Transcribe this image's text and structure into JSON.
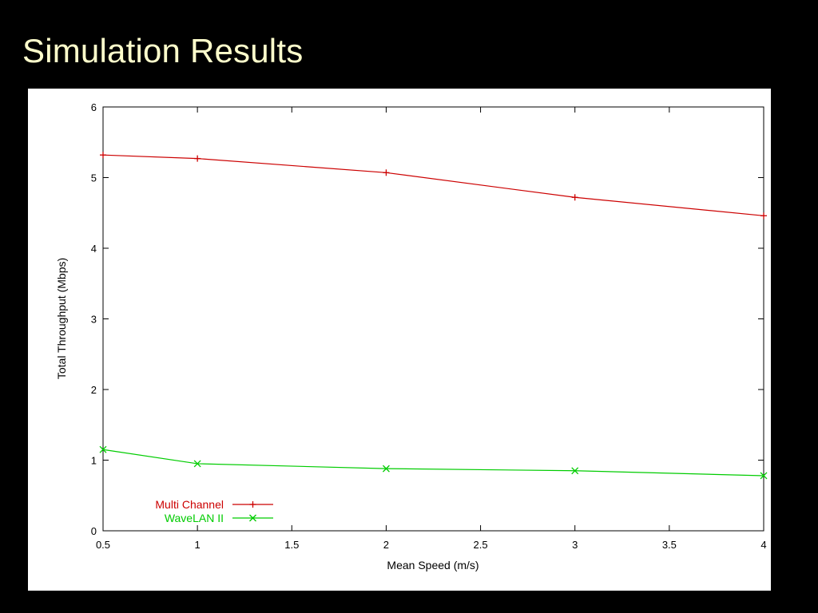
{
  "slide": {
    "title": "Simulation Results"
  },
  "chart_data": {
    "type": "line",
    "title": "",
    "xlabel": "Mean Speed (m/s)",
    "ylabel": "Total Throughput (Mbps)",
    "xlim": [
      0.5,
      4
    ],
    "ylim": [
      0,
      6
    ],
    "x_ticks": [
      "0.5",
      "1",
      "1.5",
      "2",
      "2.5",
      "3",
      "3.5",
      "4"
    ],
    "y_ticks": [
      "0",
      "1",
      "2",
      "3",
      "4",
      "5",
      "6"
    ],
    "grid": false,
    "legend_position": "bottom-left",
    "series": [
      {
        "name": "Multi Channel",
        "color": "#cc0000",
        "marker": "plus",
        "x": [
          0.5,
          1,
          2,
          3,
          4
        ],
        "y": [
          5.32,
          5.27,
          5.07,
          4.72,
          4.46
        ]
      },
      {
        "name": "WaveLAN II",
        "color": "#00cc00",
        "marker": "cross",
        "x": [
          0.5,
          1,
          2,
          3,
          4
        ],
        "y": [
          1.15,
          0.95,
          0.88,
          0.85,
          0.78
        ]
      }
    ]
  }
}
